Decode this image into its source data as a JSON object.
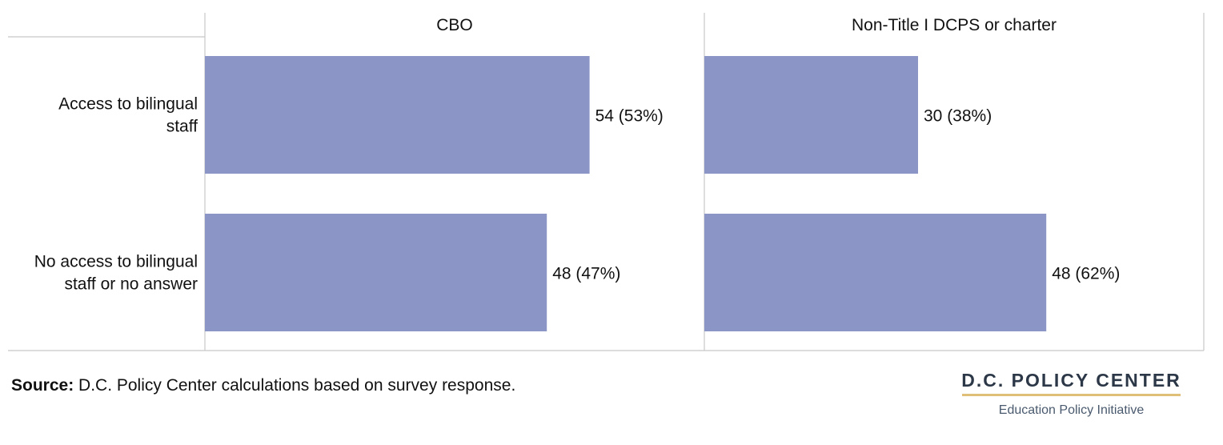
{
  "chart_data": {
    "type": "bar",
    "orientation": "horizontal",
    "panels": [
      "CBO",
      "Non-Title I DCPS or charter"
    ],
    "categories": [
      "Access to bilingual staff",
      "No access to bilingual staff or no answer"
    ],
    "series": [
      {
        "panel": "CBO",
        "values": [
          54,
          48
        ],
        "labels": [
          "54 (53%)",
          "48 (47%)"
        ]
      },
      {
        "panel": "Non-Title I DCPS or charter",
        "values": [
          30,
          48
        ],
        "labels": [
          "30 (38%)",
          "48 (62%)"
        ]
      }
    ],
    "bar_color": "#8b96c6",
    "grid": false
  },
  "footer": {
    "source_label": "Source:",
    "source_text": " D.C. Policy Center calculations based on survey response."
  },
  "logo": {
    "name": "D.C. POLICY CENTER",
    "subtitle": "Education Policy Initiative"
  }
}
